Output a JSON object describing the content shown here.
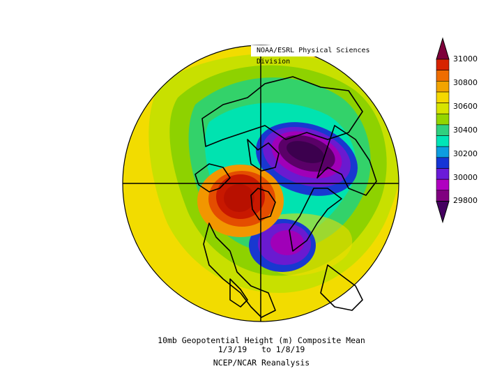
{
  "header": {
    "credit": "NOAA/ESRL Physical Sciences Division"
  },
  "caption": {
    "line1": "10mb Geopotential Height (m) Composite Mean",
    "line2": "1/3/19   to 1/8/19",
    "line3": "NCEP/NCAR Reanalysis"
  },
  "colorbar": {
    "labels": [
      "31000",
      "30800",
      "30600",
      "30400",
      "30200",
      "30000",
      "29800"
    ],
    "colors": [
      "#7e003a",
      "#d72300",
      "#ef6d00",
      "#f2a400",
      "#f5d800",
      "#d7e400",
      "#93d500",
      "#2fd07f",
      "#00e5b7",
      "#0d9de0",
      "#1535d6",
      "#6a1bd8",
      "#b000c0",
      "#800080",
      "#450060"
    ]
  },
  "map": {
    "fill_colors": {
      "yellow": "#f2dc00",
      "yellow_green": "#c8e000",
      "green": "#8ed200",
      "lime": "#33d26a",
      "aqua": "#00e3b0",
      "orange": "#f29600",
      "red_orange": "#e44d00",
      "red": "#c81800",
      "blue": "#1838d0",
      "violet": "#6a1ad0",
      "magenta": "#a000b8",
      "purple": "#5a0068",
      "dark_purple": "#3c004e"
    }
  }
}
